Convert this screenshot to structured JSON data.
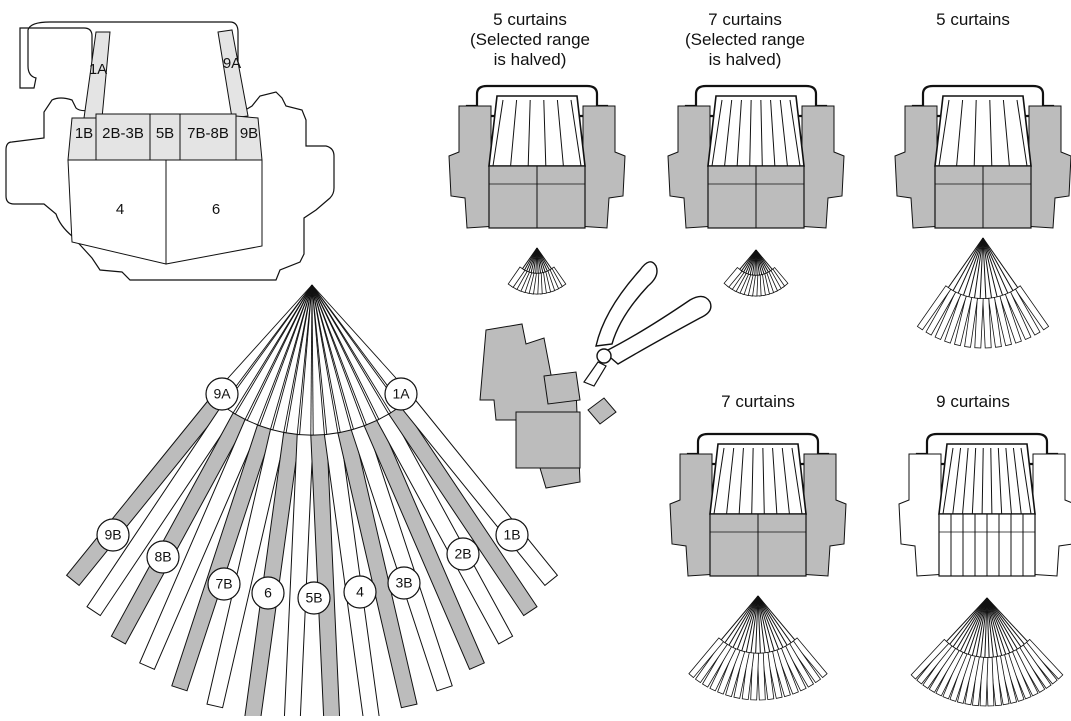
{
  "colors": {
    "stroke": "#111111",
    "gray": "#bcbcbc",
    "light": "#e4e4e4",
    "white": "#ffffff"
  },
  "floor_plan": {
    "labels": [
      "1A",
      "9A",
      "1B",
      "2B-3B",
      "5B",
      "7B-8B",
      "9B",
      "4",
      "6"
    ]
  },
  "fan_labels": [
    "9A",
    "1A",
    "9B",
    "8B",
    "7B",
    "6",
    "5B",
    "4",
    "3B",
    "2B",
    "1B"
  ],
  "variants": [
    {
      "id": "v1",
      "caption": [
        "5 curtains",
        "(Selected range",
        "is halved)"
      ]
    },
    {
      "id": "v2",
      "caption": [
        "7 curtains",
        "(Selected range",
        "is halved)"
      ]
    },
    {
      "id": "v3",
      "caption": [
        "5 curtains"
      ]
    },
    {
      "id": "v4",
      "caption": [
        "7 curtains"
      ]
    },
    {
      "id": "v5",
      "caption": [
        "9 curtains"
      ]
    }
  ],
  "icons": {
    "cutting_tool": "pliers-icon",
    "detached_piece": "cut-piece-icon"
  }
}
